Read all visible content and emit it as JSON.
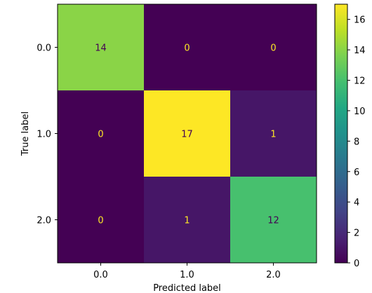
{
  "chart_data": {
    "type": "heatmap",
    "title": "",
    "xlabel": "Predicted label",
    "ylabel": "True label",
    "x_categories": [
      "0.0",
      "1.0",
      "2.0"
    ],
    "y_categories": [
      "0.0",
      "1.0",
      "2.0"
    ],
    "matrix": [
      [
        14,
        0,
        0
      ],
      [
        0,
        17,
        1
      ],
      [
        0,
        1,
        12
      ]
    ],
    "colormap": "viridis",
    "colorbar": {
      "range": [
        0,
        17
      ],
      "ticks": [
        "0",
        "2",
        "4",
        "6",
        "8",
        "10",
        "12",
        "14",
        "16"
      ]
    },
    "label_colors": {
      "on_dark": "#fde725",
      "on_light": "#440154"
    }
  }
}
